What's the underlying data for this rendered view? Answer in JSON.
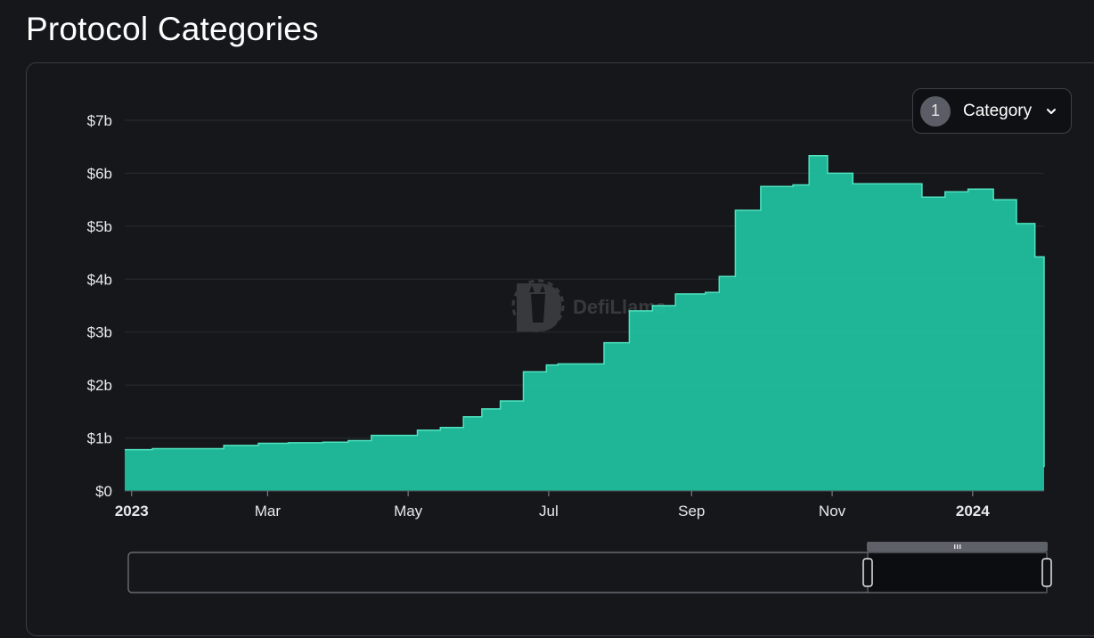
{
  "page": {
    "title": "Protocol Categories"
  },
  "category_select": {
    "count": "1",
    "label": "Category",
    "icon": "chevron-down-icon"
  },
  "watermark": {
    "text": "DefiLlama",
    "icon": "llama-logo-icon"
  },
  "colors": {
    "area": "#20bc9c",
    "line": "#4fe3c0",
    "background": "#16171b",
    "grid": "#2a2c31"
  },
  "chart_data": {
    "type": "area",
    "title": "",
    "xlabel": "",
    "ylabel": "",
    "x_ticks": [
      "2023",
      "Mar",
      "May",
      "Jul",
      "Sep",
      "Nov",
      "2024"
    ],
    "y_ticks": [
      "$0",
      "$1b",
      "$2b",
      "$3b",
      "$4b",
      "$5b",
      "$6b",
      "$7b"
    ],
    "ylim": [
      0,
      7
    ],
    "y_unit": "billion USD",
    "grid": true,
    "legend": "none",
    "series": [
      {
        "x": [
          "2022-12-29",
          "2023-01-10",
          "2023-01-25",
          "2023-02-10",
          "2023-02-25",
          "2023-03-10",
          "2023-03-25",
          "2023-04-05",
          "2023-04-15",
          "2023-04-25",
          "2023-05-05",
          "2023-05-15",
          "2023-05-25",
          "2023-06-02",
          "2023-06-10",
          "2023-06-20",
          "2023-06-30",
          "2023-07-05",
          "2023-07-10",
          "2023-07-15",
          "2023-07-25",
          "2023-08-05",
          "2023-08-15",
          "2023-08-25",
          "2023-09-01",
          "2023-09-07",
          "2023-09-13",
          "2023-09-20",
          "2023-10-01",
          "2023-10-15",
          "2023-10-22",
          "2023-10-30",
          "2023-11-10",
          "2023-11-20",
          "2023-12-01",
          "2023-12-10",
          "2023-12-20",
          "2023-12-30",
          "2024-01-10",
          "2024-01-20",
          "2024-01-25",
          "2024-01-28",
          "2024-01-30",
          "2024-02-01"
        ],
        "values": [
          0.78,
          0.8,
          0.8,
          0.86,
          0.9,
          0.91,
          0.92,
          0.95,
          1.05,
          1.05,
          1.15,
          1.2,
          1.4,
          1.55,
          1.7,
          2.25,
          2.38,
          2.4,
          2.4,
          2.4,
          2.8,
          3.4,
          3.5,
          3.72,
          3.72,
          3.75,
          4.05,
          5.3,
          5.75,
          5.78,
          6.33,
          6.0,
          5.8,
          5.8,
          5.8,
          5.55,
          5.65,
          5.7,
          5.5,
          5.05,
          5.05,
          4.42,
          4.42,
          0.45
        ]
      }
    ]
  }
}
